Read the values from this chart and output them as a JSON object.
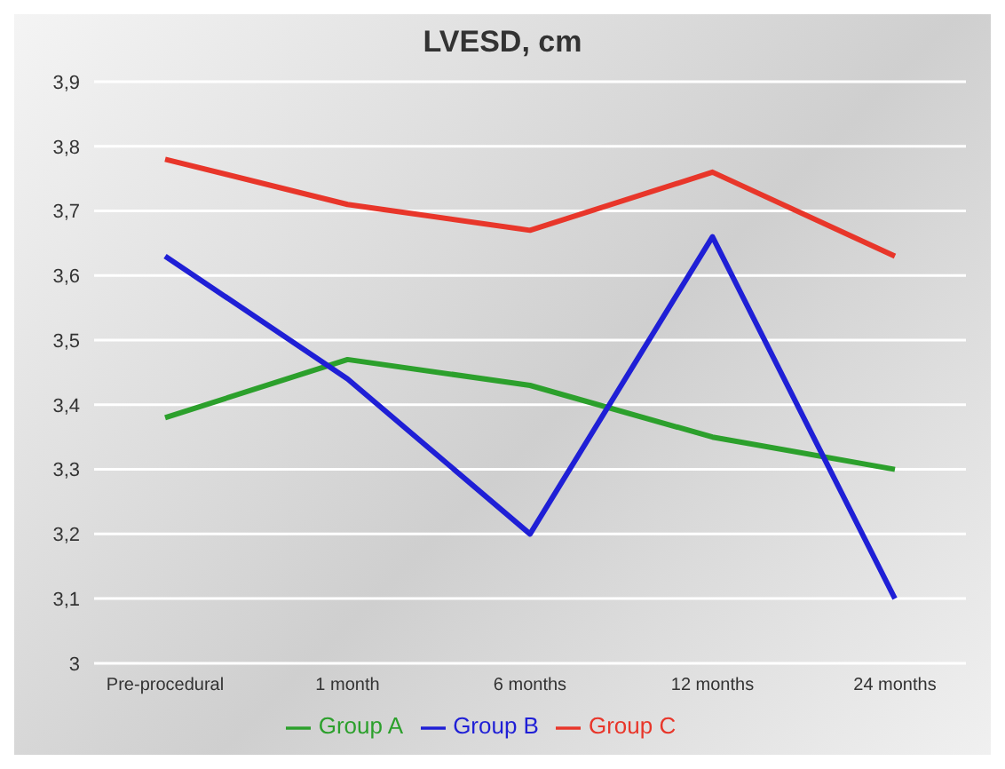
{
  "chart_data": {
    "type": "line",
    "title": "LVESD, cm",
    "categories": [
      "Pre-procedural",
      "1 month",
      "6 months",
      "12 months",
      "24 months"
    ],
    "series": [
      {
        "name": "Group A",
        "color": "#2ca02c",
        "values": [
          3.38,
          3.47,
          3.43,
          3.35,
          3.3
        ]
      },
      {
        "name": "Group B",
        "color": "#1f1fd6",
        "values": [
          3.63,
          3.44,
          3.2,
          3.66,
          3.1
        ]
      },
      {
        "name": "Group C",
        "color": "#e8362a",
        "values": [
          3.78,
          3.71,
          3.67,
          3.76,
          3.63
        ]
      }
    ],
    "ylim": [
      3,
      3.9
    ],
    "yticks": [
      {
        "value": 3,
        "label": "3"
      },
      {
        "value": 3.1,
        "label": "3,1"
      },
      {
        "value": 3.2,
        "label": "3,2"
      },
      {
        "value": 3.3,
        "label": "3,3"
      },
      {
        "value": 3.4,
        "label": "3,4"
      },
      {
        "value": 3.5,
        "label": "3,5"
      },
      {
        "value": 3.6,
        "label": "3,6"
      },
      {
        "value": 3.7,
        "label": "3,7"
      },
      {
        "value": 3.8,
        "label": "3,8"
      },
      {
        "value": 3.9,
        "label": "3,9"
      }
    ],
    "grid": "y",
    "legend": "bottom",
    "marker": "none",
    "line_style": "solid"
  }
}
